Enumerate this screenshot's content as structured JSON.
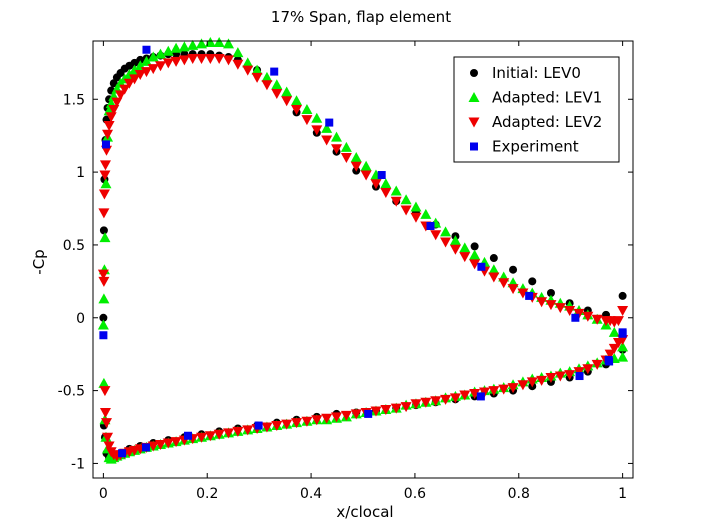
{
  "chart_data": {
    "type": "scatter",
    "title": "17% Span, flap element",
    "xlabel": "x/clocal",
    "ylabel": "-Cp",
    "xlim": [
      -0.02,
      1.02
    ],
    "ylim": [
      -1.1,
      1.9
    ],
    "xticks": [
      0,
      0.2,
      0.4,
      0.6,
      0.8,
      1
    ],
    "xtick_labels": [
      "0",
      "0.2",
      "0.4",
      "0.6",
      "0.8",
      "1"
    ],
    "yticks": [
      -1,
      -0.5,
      0,
      0.5,
      1,
      1.5
    ],
    "ytick_labels": [
      "-1",
      "-0.5",
      "0",
      "0.5",
      "1",
      "1.5"
    ],
    "grid": false,
    "legend_position": "top-right",
    "series": [
      {
        "name": "Initial: LEV0",
        "marker": "circle",
        "color": "#000000",
        "x": [
          0.0,
          0.001,
          0.002,
          0.004,
          0.006,
          0.008,
          0.011,
          0.015,
          0.02,
          0.026,
          0.033,
          0.041,
          0.05,
          0.06,
          0.071,
          0.083,
          0.096,
          0.11,
          0.125,
          0.14,
          0.156,
          0.172,
          0.189,
          0.206,
          0.223,
          0.241,
          0.259,
          0.296,
          0.334,
          0.372,
          0.411,
          0.449,
          0.487,
          0.525,
          0.564,
          0.602,
          0.64,
          0.678,
          0.715,
          0.752,
          0.789,
          0.826,
          0.862,
          0.898,
          0.933,
          0.968,
          1.0,
          1.0,
          0.968,
          0.933,
          0.898,
          0.862,
          0.826,
          0.789,
          0.752,
          0.715,
          0.678,
          0.64,
          0.602,
          0.564,
          0.525,
          0.487,
          0.449,
          0.411,
          0.372,
          0.334,
          0.296,
          0.259,
          0.223,
          0.189,
          0.156,
          0.125,
          0.096,
          0.071,
          0.05,
          0.033,
          0.02,
          0.011,
          0.006,
          0.003,
          0.001
        ],
        "y": [
          0.0,
          0.6,
          0.95,
          1.22,
          1.36,
          1.44,
          1.5,
          1.56,
          1.61,
          1.65,
          1.68,
          1.71,
          1.73,
          1.75,
          1.77,
          1.78,
          1.79,
          1.8,
          1.81,
          1.81,
          1.81,
          1.81,
          1.81,
          1.81,
          1.8,
          1.79,
          1.77,
          1.7,
          1.56,
          1.41,
          1.27,
          1.14,
          1.01,
          0.9,
          0.8,
          0.72,
          0.64,
          0.56,
          0.49,
          0.41,
          0.33,
          0.25,
          0.17,
          0.1,
          0.05,
          0.02,
          0.15,
          -0.22,
          -0.32,
          -0.37,
          -0.41,
          -0.44,
          -0.47,
          -0.5,
          -0.52,
          -0.54,
          -0.56,
          -0.58,
          -0.6,
          -0.62,
          -0.64,
          -0.65,
          -0.66,
          -0.68,
          -0.7,
          -0.72,
          -0.74,
          -0.76,
          -0.78,
          -0.8,
          -0.82,
          -0.84,
          -0.86,
          -0.88,
          -0.9,
          -0.93,
          -0.96,
          -0.96,
          -0.93,
          -0.82,
          -0.74
        ]
      },
      {
        "name": "Adapted: LEV1",
        "marker": "triangle-up",
        "color": "#00ee00",
        "x": [
          0.0,
          0.001,
          0.002,
          0.003,
          0.005,
          0.008,
          0.011,
          0.015,
          0.02,
          0.026,
          0.033,
          0.041,
          0.05,
          0.06,
          0.071,
          0.083,
          0.096,
          0.11,
          0.125,
          0.14,
          0.156,
          0.172,
          0.189,
          0.206,
          0.223,
          0.241,
          0.259,
          0.278,
          0.296,
          0.315,
          0.334,
          0.353,
          0.372,
          0.392,
          0.411,
          0.43,
          0.449,
          0.468,
          0.487,
          0.506,
          0.525,
          0.544,
          0.564,
          0.583,
          0.602,
          0.621,
          0.64,
          0.659,
          0.678,
          0.696,
          0.715,
          0.734,
          0.752,
          0.771,
          0.789,
          0.808,
          0.826,
          0.844,
          0.862,
          0.88,
          0.898,
          0.916,
          0.933,
          0.951,
          0.968,
          0.984,
          1.0,
          1.0,
          0.984,
          0.968,
          0.951,
          0.933,
          0.916,
          0.898,
          0.88,
          0.862,
          0.844,
          0.826,
          0.808,
          0.789,
          0.771,
          0.752,
          0.734,
          0.715,
          0.696,
          0.678,
          0.659,
          0.64,
          0.621,
          0.602,
          0.583,
          0.564,
          0.544,
          0.525,
          0.506,
          0.487,
          0.468,
          0.449,
          0.43,
          0.411,
          0.392,
          0.372,
          0.353,
          0.334,
          0.315,
          0.296,
          0.278,
          0.259,
          0.241,
          0.223,
          0.206,
          0.189,
          0.172,
          0.156,
          0.14,
          0.125,
          0.11,
          0.096,
          0.083,
          0.071,
          0.06,
          0.05,
          0.041,
          0.033,
          0.026,
          0.02,
          0.015,
          0.011,
          0.008,
          0.005,
          0.003,
          0.001
        ],
        "y": [
          -0.05,
          0.13,
          0.33,
          0.55,
          0.92,
          1.24,
          1.42,
          1.47,
          1.52,
          1.57,
          1.61,
          1.64,
          1.67,
          1.7,
          1.73,
          1.76,
          1.79,
          1.81,
          1.83,
          1.85,
          1.86,
          1.87,
          1.88,
          1.89,
          1.89,
          1.88,
          1.82,
          1.75,
          1.7,
          1.65,
          1.6,
          1.55,
          1.49,
          1.43,
          1.37,
          1.3,
          1.24,
          1.17,
          1.1,
          1.04,
          0.98,
          0.92,
          0.87,
          0.81,
          0.76,
          0.71,
          0.65,
          0.59,
          0.53,
          0.48,
          0.43,
          0.38,
          0.33,
          0.28,
          0.24,
          0.2,
          0.17,
          0.14,
          0.12,
          0.1,
          0.08,
          0.05,
          0.02,
          -0.01,
          -0.05,
          -0.1,
          -0.2,
          -0.27,
          -0.28,
          -0.29,
          -0.31,
          -0.33,
          -0.35,
          -0.37,
          -0.38,
          -0.4,
          -0.41,
          -0.42,
          -0.44,
          -0.46,
          -0.48,
          -0.49,
          -0.5,
          -0.51,
          -0.53,
          -0.54,
          -0.55,
          -0.57,
          -0.58,
          -0.59,
          -0.6,
          -0.62,
          -0.63,
          -0.64,
          -0.65,
          -0.66,
          -0.68,
          -0.69,
          -0.7,
          -0.7,
          -0.71,
          -0.72,
          -0.73,
          -0.74,
          -0.75,
          -0.76,
          -0.77,
          -0.78,
          -0.79,
          -0.8,
          -0.81,
          -0.82,
          -0.83,
          -0.84,
          -0.85,
          -0.86,
          -0.87,
          -0.88,
          -0.89,
          -0.9,
          -0.91,
          -0.92,
          -0.93,
          -0.94,
          -0.95,
          -0.96,
          -0.97,
          -0.96,
          -0.9,
          -0.82,
          -0.7,
          -0.45
        ]
      },
      {
        "name": "Adapted: LEV2",
        "marker": "triangle-down",
        "color": "#ee0000",
        "x": [
          0.0,
          0.001,
          0.002,
          0.003,
          0.004,
          0.006,
          0.008,
          0.011,
          0.015,
          0.02,
          0.026,
          0.033,
          0.041,
          0.05,
          0.06,
          0.071,
          0.083,
          0.096,
          0.11,
          0.125,
          0.14,
          0.156,
          0.172,
          0.189,
          0.206,
          0.223,
          0.241,
          0.259,
          0.278,
          0.296,
          0.315,
          0.334,
          0.353,
          0.372,
          0.392,
          0.411,
          0.43,
          0.449,
          0.468,
          0.487,
          0.506,
          0.525,
          0.544,
          0.564,
          0.583,
          0.602,
          0.621,
          0.64,
          0.659,
          0.678,
          0.696,
          0.715,
          0.734,
          0.752,
          0.771,
          0.789,
          0.808,
          0.826,
          0.844,
          0.862,
          0.88,
          0.898,
          0.916,
          0.933,
          0.951,
          0.968,
          0.976,
          0.984,
          0.992,
          1.0,
          1.0,
          0.992,
          0.984,
          0.976,
          0.968,
          0.951,
          0.933,
          0.916,
          0.898,
          0.88,
          0.862,
          0.844,
          0.826,
          0.808,
          0.789,
          0.771,
          0.752,
          0.734,
          0.715,
          0.696,
          0.678,
          0.659,
          0.64,
          0.621,
          0.602,
          0.583,
          0.564,
          0.544,
          0.525,
          0.506,
          0.487,
          0.468,
          0.449,
          0.43,
          0.411,
          0.392,
          0.372,
          0.353,
          0.334,
          0.315,
          0.296,
          0.278,
          0.259,
          0.241,
          0.223,
          0.206,
          0.189,
          0.172,
          0.156,
          0.14,
          0.125,
          0.11,
          0.096,
          0.083,
          0.071,
          0.06,
          0.05,
          0.041,
          0.033,
          0.026,
          0.02,
          0.015,
          0.011,
          0.008,
          0.006,
          0.004,
          0.003,
          0.001
        ],
        "y": [
          0.3,
          0.72,
          0.85,
          0.98,
          1.05,
          1.15,
          1.26,
          1.32,
          1.38,
          1.43,
          1.48,
          1.53,
          1.57,
          1.61,
          1.64,
          1.67,
          1.69,
          1.71,
          1.73,
          1.75,
          1.76,
          1.77,
          1.78,
          1.78,
          1.78,
          1.78,
          1.77,
          1.74,
          1.7,
          1.65,
          1.6,
          1.54,
          1.49,
          1.43,
          1.36,
          1.29,
          1.22,
          1.16,
          1.1,
          1.04,
          0.98,
          0.92,
          0.86,
          0.8,
          0.74,
          0.69,
          0.63,
          0.57,
          0.52,
          0.47,
          0.42,
          0.37,
          0.32,
          0.28,
          0.24,
          0.2,
          0.17,
          0.14,
          0.11,
          0.09,
          0.07,
          0.05,
          0.03,
          0.01,
          -0.01,
          -0.02,
          -0.02,
          -0.03,
          -0.02,
          0.05,
          -0.15,
          -0.17,
          -0.21,
          -0.25,
          -0.29,
          -0.32,
          -0.35,
          -0.37,
          -0.39,
          -0.4,
          -0.41,
          -0.43,
          -0.44,
          -0.46,
          -0.48,
          -0.49,
          -0.5,
          -0.51,
          -0.52,
          -0.53,
          -0.55,
          -0.56,
          -0.57,
          -0.58,
          -0.59,
          -0.61,
          -0.62,
          -0.63,
          -0.64,
          -0.65,
          -0.66,
          -0.67,
          -0.68,
          -0.69,
          -0.7,
          -0.71,
          -0.72,
          -0.73,
          -0.74,
          -0.75,
          -0.76,
          -0.77,
          -0.78,
          -0.79,
          -0.8,
          -0.81,
          -0.82,
          -0.83,
          -0.84,
          -0.85,
          -0.86,
          -0.87,
          -0.88,
          -0.89,
          -0.9,
          -0.91,
          -0.92,
          -0.93,
          -0.94,
          -0.95,
          -0.94,
          -0.92,
          -0.88,
          -0.82,
          -0.72,
          -0.65,
          -0.5,
          0.25
        ]
      },
      {
        "name": "Experiment",
        "marker": "square",
        "color": "#0000ee",
        "x": [
          0.0,
          0.005,
          0.083,
          0.329,
          0.435,
          0.536,
          0.63,
          0.728,
          0.82,
          0.909,
          0.974,
          1.0,
          1.0,
          0.973,
          0.917,
          0.727,
          0.51,
          0.299,
          0.163,
          0.082,
          0.036
        ],
        "y": [
          -0.12,
          1.19,
          1.84,
          1.69,
          1.34,
          0.98,
          0.63,
          0.35,
          0.15,
          0.0,
          -0.3,
          -0.1,
          -0.11,
          -0.29,
          -0.4,
          -0.54,
          -0.66,
          -0.74,
          -0.81,
          -0.89,
          -0.93
        ]
      }
    ]
  }
}
